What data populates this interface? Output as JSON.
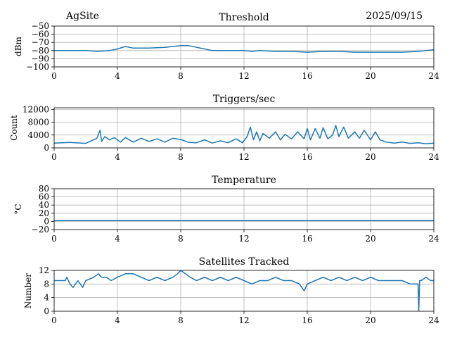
{
  "header": {
    "site": "AgSite",
    "date": "2025/09/15"
  },
  "colors": {
    "series": "#1f77b4"
  },
  "chart_data": [
    {
      "id": "threshold",
      "type": "line",
      "title": "Threshold",
      "xlabel": "",
      "ylabel": "dBm",
      "xlim": [
        0,
        24
      ],
      "ylim": [
        -100,
        -50
      ],
      "xticks": [
        0,
        4,
        8,
        12,
        16,
        20,
        24
      ],
      "yticks": [
        -100,
        -90,
        -80,
        -70,
        -60,
        -50
      ],
      "ytick_labels": [
        "−100",
        "−90",
        "−80",
        "−70",
        "−60",
        "−50"
      ],
      "grid": true,
      "series": [
        {
          "x": [
            0,
            1,
            2,
            2.8,
            3.5,
            4,
            4.5,
            5,
            6,
            7,
            7.5,
            8,
            8.5,
            9,
            9.5,
            10,
            11,
            12,
            12.5,
            13,
            14,
            15,
            16,
            17,
            18,
            19,
            20,
            21,
            22,
            23,
            23.5,
            24
          ],
          "y": [
            -80,
            -80,
            -80,
            -81,
            -80,
            -78,
            -75,
            -77,
            -77,
            -76,
            -75,
            -74,
            -74,
            -76,
            -78,
            -80,
            -80,
            -80,
            -81,
            -80,
            -81,
            -81,
            -82,
            -81,
            -81,
            -82,
            -82,
            -82,
            -82,
            -81,
            -80,
            -79
          ]
        }
      ]
    },
    {
      "id": "triggers",
      "type": "line",
      "title": "Triggers/sec",
      "xlabel": "",
      "ylabel": "Count",
      "xlim": [
        0,
        24
      ],
      "ylim": [
        0,
        12500
      ],
      "xticks": [
        0,
        4,
        8,
        12,
        16,
        20,
        24
      ],
      "yticks": [
        0,
        4000,
        8000,
        12000
      ],
      "ytick_labels": [
        "0",
        "4000",
        "8000",
        "12000"
      ],
      "grid": true,
      "series": [
        {
          "x": [
            0,
            1,
            2,
            2.7,
            2.9,
            3.0,
            3.2,
            3.5,
            3.8,
            4.2,
            4.5,
            5,
            5.5,
            6,
            6.5,
            7,
            7.5,
            8,
            8.5,
            9,
            9.5,
            10,
            10.5,
            11,
            11.5,
            11.9,
            12.2,
            12.4,
            12.6,
            12.8,
            13,
            13.2,
            13.6,
            14,
            14.3,
            14.6,
            15,
            15.4,
            15.8,
            16,
            16.2,
            16.5,
            16.8,
            17,
            17.3,
            17.6,
            17.8,
            18,
            18.3,
            18.6,
            19,
            19.3,
            19.6,
            20,
            20.3,
            20.6,
            21,
            21.5,
            22,
            22.5,
            23,
            23.5,
            24
          ],
          "y": [
            1500,
            1700,
            1400,
            3000,
            5500,
            2000,
            3500,
            2500,
            3200,
            1800,
            3200,
            1800,
            3000,
            2000,
            2800,
            1800,
            3000,
            2600,
            1700,
            1600,
            2500,
            1500,
            2200,
            1600,
            2800,
            1600,
            3500,
            6500,
            2500,
            5000,
            2200,
            4500,
            3000,
            5000,
            2500,
            4200,
            2800,
            5000,
            2800,
            6000,
            2500,
            6000,
            3000,
            6300,
            2800,
            4000,
            7000,
            3500,
            6500,
            3000,
            5000,
            3000,
            5500,
            2500,
            5000,
            2500,
            1800,
            1500,
            1800,
            1400,
            1600,
            1300,
            1500
          ]
        }
      ]
    },
    {
      "id": "temperature",
      "type": "line",
      "title": "Temperature",
      "xlabel": "",
      "ylabel": "°C",
      "xlim": [
        0,
        24
      ],
      "ylim": [
        -20,
        80
      ],
      "xticks": [
        0,
        4,
        8,
        12,
        16,
        20,
        24
      ],
      "yticks": [
        -20,
        0,
        20,
        40,
        60,
        80
      ],
      "ytick_labels": [
        "−20",
        "0",
        "20",
        "40",
        "60",
        "80"
      ],
      "grid": true,
      "series": [
        {
          "x": [
            0,
            24
          ],
          "y": [
            2,
            2
          ]
        }
      ]
    },
    {
      "id": "satellites",
      "type": "line",
      "title": "Satellites Tracked",
      "xlabel": "",
      "ylabel": "Number",
      "xlim": [
        0,
        24
      ],
      "ylim": [
        0,
        12
      ],
      "xticks": [
        0,
        4,
        8,
        12,
        16,
        20,
        24
      ],
      "yticks": [
        0,
        4,
        8,
        12
      ],
      "ytick_labels": [
        "0",
        "4",
        "8",
        "12"
      ],
      "grid": true,
      "series": [
        {
          "x": [
            0,
            0.7,
            0.8,
            1.0,
            1.2,
            1.5,
            1.8,
            2.0,
            2.5,
            2.8,
            3.0,
            3.3,
            3.6,
            4.0,
            4.5,
            5.0,
            5.5,
            6.0,
            6.5,
            7.0,
            7.5,
            7.8,
            8.0,
            8.3,
            8.6,
            9.0,
            9.5,
            10.0,
            10.5,
            11.0,
            11.5,
            12.0,
            12.5,
            13.0,
            13.5,
            14.0,
            14.5,
            15.0,
            15.5,
            15.8,
            16.0,
            16.5,
            17.0,
            17.5,
            18.0,
            18.5,
            19.0,
            19.5,
            20.0,
            20.5,
            21.0,
            21.5,
            22.0,
            22.5,
            23.0,
            23.05,
            23.1,
            23.2,
            23.5,
            23.8,
            24.0
          ],
          "y": [
            9,
            9,
            10,
            8,
            7,
            9,
            7,
            9,
            10,
            11,
            10,
            10,
            9,
            10,
            11,
            11,
            10,
            9,
            10,
            9,
            10,
            11,
            12,
            11,
            10,
            9,
            10,
            9,
            10,
            9,
            10,
            9,
            8,
            9,
            9,
            10,
            9,
            9,
            8,
            6,
            8,
            9,
            10,
            9,
            10,
            9,
            10,
            9,
            10,
            9,
            9,
            9,
            9,
            8,
            8,
            0,
            9,
            9,
            10,
            9,
            9
          ]
        }
      ]
    }
  ]
}
